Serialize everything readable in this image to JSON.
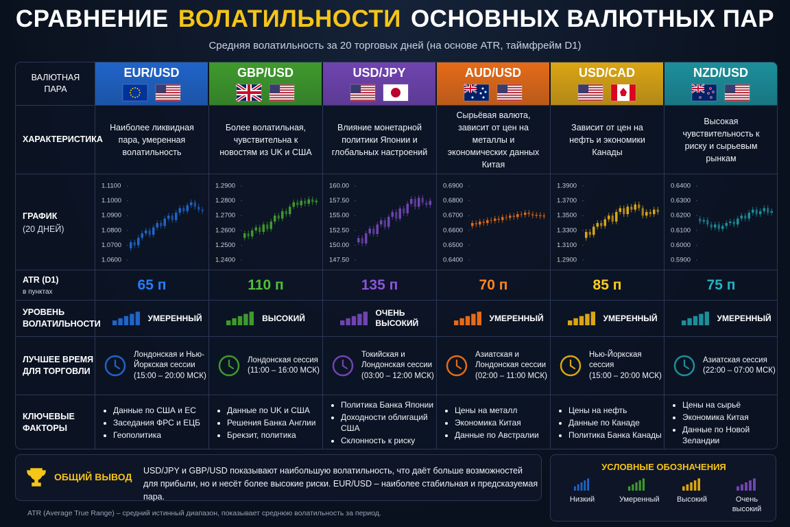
{
  "header": {
    "title_parts": [
      "СРАВНЕНИЕ",
      "ВОЛАТИЛЬНОСТИ",
      "ОСНОВНЫХ ВАЛЮТНЫХ ПАР"
    ],
    "subtitle": "Средняя волатильность за 20 торговых дней (на основе ATR, таймфрейм D1)"
  },
  "row_labels": [
    {
      "title": "ВАЛЮТНАЯ ПАРА"
    },
    {
      "title": "ХАРАКТЕРИСТИКА"
    },
    {
      "title": "ГРАФИК",
      "note": "(20 ДНЕЙ)"
    },
    {
      "title": "ATR (D1)",
      "note": "в пунктах"
    },
    {
      "title": "УРОВЕНЬ ВОЛАТИЛЬНОСТИ"
    },
    {
      "title": "ЛУЧШЕЕ ВРЕМЯ ДЛЯ ТОРГОВЛИ"
    },
    {
      "title": "КЛЮЧЕВЫЕ ФАКТОРЫ"
    }
  ],
  "pairs": [
    {
      "name": "EUR/USD",
      "color": "#2064c8",
      "description": "Наиболее ликвидная пара, умеренная волатильность",
      "chart": {
        "type": "candlestick",
        "ylim": [
          1.06,
          1.11
        ],
        "yticks": [
          {
            "value": 1.06,
            "label": "1.0600"
          },
          {
            "value": 1.07,
            "label": "1.0700"
          },
          {
            "value": 1.08,
            "label": "1.0800"
          },
          {
            "value": 1.09,
            "label": "1.0900"
          },
          {
            "value": 1.1,
            "label": "1.1000"
          },
          {
            "value": 1.11,
            "label": "1.1100"
          }
        ],
        "values": [
          1.068,
          1.072,
          1.07,
          1.075,
          1.078,
          1.08,
          1.077,
          1.082,
          1.085,
          1.083,
          1.088,
          1.09,
          1.087,
          1.092,
          1.095,
          1.093,
          1.097,
          1.099,
          1.096,
          1.094,
          1.093
        ]
      },
      "atr": "65 п",
      "level": "УМЕРЕННЫЙ",
      "session": "Лондонская и Нью-Йоркская сессии",
      "hours": "(15:00 – 20:00 МСК)",
      "factors": [
        "Данные по США и ЕС",
        "Заседания ФРС и ЕЦБ",
        "Геополитика"
      ]
    },
    {
      "name": "GBP/USD",
      "color": "#3f9a2c",
      "description": "Более волатильная, чувствительна к новостям из UK и США",
      "chart": {
        "type": "candlestick",
        "ylim": [
          1.24,
          1.29
        ],
        "yticks": [
          {
            "value": 1.24,
            "label": "1.2400"
          },
          {
            "value": 1.25,
            "label": "1.2500"
          },
          {
            "value": 1.26,
            "label": "1.2600"
          },
          {
            "value": 1.27,
            "label": "1.2700"
          },
          {
            "value": 1.28,
            "label": "1.2800"
          },
          {
            "value": 1.29,
            "label": "1.2900"
          }
        ],
        "values": [
          1.255,
          1.258,
          1.256,
          1.26,
          1.262,
          1.259,
          1.264,
          1.261,
          1.266,
          1.27,
          1.268,
          1.273,
          1.271,
          1.276,
          1.279,
          1.277,
          1.28,
          1.278,
          1.281,
          1.279,
          1.28
        ]
      },
      "atr": "110 п",
      "level": "ВЫСОКИЙ",
      "session": "Лондонская сессия",
      "hours": "(11:00 – 16:00 МСК)",
      "factors": [
        "Данные по UK и США",
        "Решения Банка Англии",
        "Брекзит, политика"
      ]
    },
    {
      "name": "USD/JPY",
      "color": "#7044b0",
      "description": "Влияние монетарной политики Японии и глобальных настроений",
      "chart": {
        "type": "candlestick",
        "ylim": [
          147.5,
          160
        ],
        "yticks": [
          {
            "value": 147.5,
            "label": "147.50"
          },
          {
            "value": 150,
            "label": "150.00"
          },
          {
            "value": 152.5,
            "label": "152.50"
          },
          {
            "value": 155,
            "label": "155.00"
          },
          {
            "value": 157.5,
            "label": "157.50"
          },
          {
            "value": 160,
            "label": "160.00"
          }
        ],
        "values": [
          150.5,
          151.2,
          150.3,
          152.0,
          152.8,
          151.9,
          153.5,
          154.2,
          153.1,
          154.8,
          155.6,
          154.5,
          156.2,
          155.4,
          157.0,
          157.8,
          156.5,
          158.0,
          157.2,
          156.8,
          157.5
        ]
      },
      "atr": "135 п",
      "level": "ОЧЕНЬ ВЫСОКИЙ",
      "session": "Токийская и Лондонская сессии",
      "hours": "(03:00 – 12:00 МСК)",
      "factors": [
        "Политика Банка Японии",
        "Доходности облигаций США",
        "Склонность к риску"
      ]
    },
    {
      "name": "AUD/USD",
      "color": "#e56b18",
      "description": "Сырьёвая валюта, зависит от цен на металлы и экономических данных Китая",
      "chart": {
        "type": "candlestick",
        "ylim": [
          0.64,
          0.69
        ],
        "yticks": [
          {
            "value": 0.64,
            "label": "0.6400"
          },
          {
            "value": 0.65,
            "label": "0.6500"
          },
          {
            "value": 0.66,
            "label": "0.6600"
          },
          {
            "value": 0.67,
            "label": "0.6700"
          },
          {
            "value": 0.68,
            "label": "0.6800"
          },
          {
            "value": 0.69,
            "label": "0.6900"
          }
        ],
        "values": [
          0.663,
          0.665,
          0.664,
          0.666,
          0.665,
          0.667,
          0.6665,
          0.668,
          0.667,
          0.669,
          0.6685,
          0.67,
          0.669,
          0.671,
          0.6705,
          0.672,
          0.671,
          0.67,
          0.6705,
          0.6695,
          0.67
        ]
      },
      "atr": "70 п",
      "level": "УМЕРЕННЫЙ",
      "session": "Азиатская и Лондонская сессии",
      "hours": "(02:00 – 11:00 МСК)",
      "factors": [
        "Цены на металл",
        "Экономика Китая",
        "Данные по Австралии"
      ]
    },
    {
      "name": "USD/CAD",
      "color": "#dba514",
      "description": "Зависит от цен на нефть и экономики Канады",
      "chart": {
        "type": "candlestick",
        "ylim": [
          1.29,
          1.39
        ],
        "yticks": [
          {
            "value": 1.29,
            "label": "1.2900"
          },
          {
            "value": 1.31,
            "label": "1.3100"
          },
          {
            "value": 1.33,
            "label": "1.3300"
          },
          {
            "value": 1.35,
            "label": "1.3500"
          },
          {
            "value": 1.37,
            "label": "1.3700"
          },
          {
            "value": 1.39,
            "label": "1.3900"
          }
        ],
        "values": [
          1.32,
          1.328,
          1.324,
          1.335,
          1.34,
          1.336,
          1.345,
          1.35,
          1.342,
          1.355,
          1.36,
          1.352,
          1.362,
          1.358,
          1.365,
          1.36,
          1.35,
          1.355,
          1.352,
          1.358,
          1.355
        ]
      },
      "atr": "85 п",
      "level": "УМЕРЕННЫЙ",
      "session": "Нью-Йоркская сессия",
      "hours": "(15:00 – 20:00 МСК)",
      "factors": [
        "Цены на нефть",
        "Данные по Канаде",
        "Политика Банка Канады"
      ]
    },
    {
      "name": "NZD/USD",
      "color": "#1c8f9a",
      "description": "Высокая чувствительность к риску и сырьевым рынкам",
      "chart": {
        "type": "candlestick",
        "ylim": [
          0.59,
          0.64
        ],
        "yticks": [
          {
            "value": 0.59,
            "label": "0.5900"
          },
          {
            "value": 0.6,
            "label": "0.6000"
          },
          {
            "value": 0.61,
            "label": "0.6100"
          },
          {
            "value": 0.62,
            "label": "0.6200"
          },
          {
            "value": 0.63,
            "label": "0.6300"
          },
          {
            "value": 0.64,
            "label": "0.6400"
          }
        ],
        "values": [
          0.618,
          0.616,
          0.617,
          0.614,
          0.612,
          0.614,
          0.611,
          0.613,
          0.615,
          0.616,
          0.614,
          0.618,
          0.62,
          0.618,
          0.622,
          0.624,
          0.621,
          0.623,
          0.625,
          0.622,
          0.623
        ]
      },
      "atr": "75 п",
      "level": "УМЕРЕННЫЙ",
      "session": "Азиатская сессия",
      "hours": "(22:00 – 07:00 МСК)",
      "factors": [
        "Цены на сырьё",
        "Экономика Китая",
        "Данные по Новой Зеландии"
      ]
    }
  ],
  "summary": {
    "label": "ОБЩИЙ ВЫВОД",
    "text": "USD/JPY и GBP/USD показывают наибольшую волатильность, что даёт больше возможностей для прибыли, но и несёт более высокие риски. EUR/USD – наиболее стабильная и предсказуемая пара."
  },
  "legend": {
    "title": "УСЛОВНЫЕ ОБОЗНАЧЕНИЯ",
    "items": [
      "Низкий",
      "Умеренный",
      "Высокий",
      "Очень высокий"
    ]
  },
  "footnote": "ATR (Average True Range) – средний истинный диапазон, показывает среднюю волатильность за период."
}
